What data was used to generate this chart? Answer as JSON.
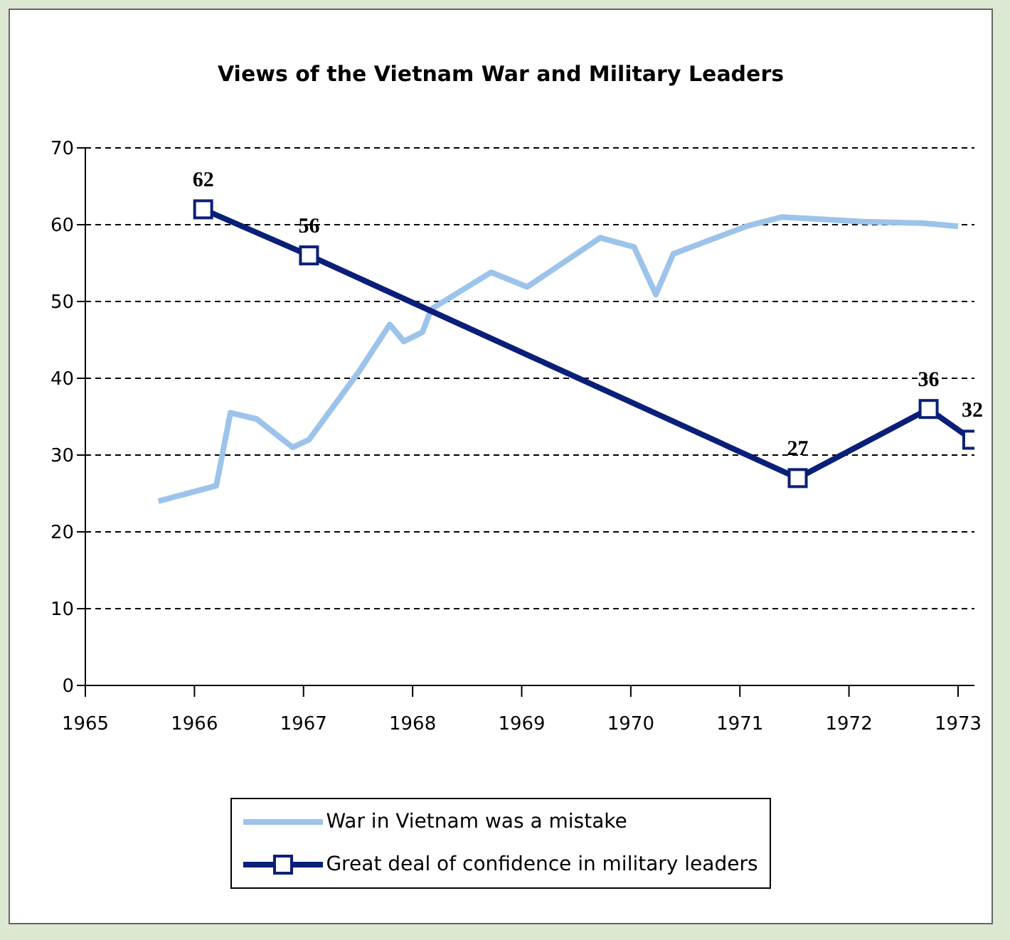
{
  "chart_data": {
    "type": "line",
    "title": "Views of the Vietnam War and Military Leaders",
    "xlim": [
      1965,
      1973.15
    ],
    "xticks": [
      1965,
      1966,
      1967,
      1968,
      1969,
      1970,
      1971,
      1972,
      1973
    ],
    "ylim": [
      0,
      70
    ],
    "yticks": [
      0,
      10,
      20,
      30,
      40,
      50,
      60,
      70
    ],
    "grid": "y",
    "legend": "bottom",
    "series": [
      {
        "name": "War in Vietnam was a mistake",
        "color": "#9cc3ea",
        "marker": "none",
        "x": [
          1965.67,
          1966.2,
          1966.33,
          1966.57,
          1966.9,
          1967.05,
          1967.5,
          1967.79,
          1967.92,
          1968.09,
          1968.17,
          1968.72,
          1969.05,
          1969.72,
          1970.03,
          1970.23,
          1970.39,
          1971.06,
          1971.39,
          1972.13,
          1972.67,
          1973.0
        ],
        "values": [
          24,
          26,
          35.5,
          34.7,
          31,
          32,
          40.7,
          47,
          44.8,
          46,
          49,
          53.8,
          51.9,
          58.3,
          57.1,
          50.9,
          56.2,
          59.8,
          61,
          60.4,
          60.2,
          59.8
        ]
      },
      {
        "name": "Great deal of confidence in military leaders",
        "color": "#0a1f78",
        "marker": "square",
        "data_labels": true,
        "x": [
          1966.08,
          1967.05,
          1971.53,
          1972.73,
          1973.13
        ],
        "values": [
          62,
          56,
          27,
          36,
          32
        ]
      }
    ]
  }
}
